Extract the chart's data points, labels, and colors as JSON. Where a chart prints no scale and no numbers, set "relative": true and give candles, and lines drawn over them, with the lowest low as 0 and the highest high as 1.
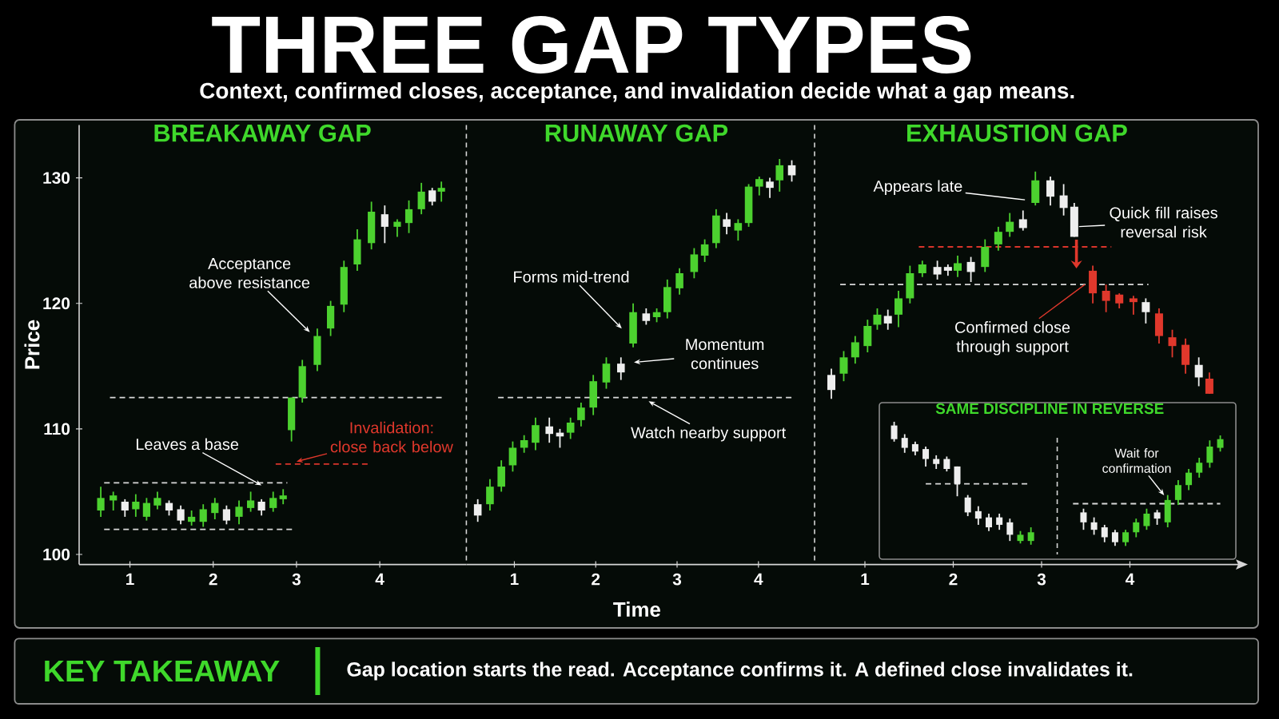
{
  "chart_data": [
    {
      "type": "other",
      "title": "THREE GAP TYPES",
      "subtitle": "Context, confirmed closes, acceptance, and invalidation decide what a gap means."
    },
    {
      "type": "candlestick",
      "title": "BREAKAWAY GAP",
      "ylabel": "Price",
      "x": [
        0.65,
        0.8,
        0.94,
        1.07,
        1.2,
        1.33,
        1.47,
        1.61,
        1.74,
        1.88,
        2.02,
        2.16,
        2.31,
        2.45,
        2.58,
        2.72,
        2.84,
        2.94,
        3.07,
        3.25,
        3.41,
        3.57,
        3.73,
        3.9,
        4.06,
        4.21,
        4.35,
        4.5,
        4.63,
        4.74
      ],
      "ohlc": [
        [
          103.5,
          105.4,
          103.0,
          104.5
        ],
        [
          104.3,
          105.0,
          103.5,
          104.7
        ],
        [
          104.2,
          104.4,
          103.0,
          103.5
        ],
        [
          103.6,
          104.8,
          103.0,
          104.2
        ],
        [
          103.0,
          104.5,
          102.7,
          104.1
        ],
        [
          103.9,
          105.0,
          103.6,
          104.5
        ],
        [
          104.1,
          104.3,
          103.1,
          103.5
        ],
        [
          103.6,
          103.9,
          102.4,
          102.7
        ],
        [
          102.6,
          103.5,
          102.3,
          103.0
        ],
        [
          102.6,
          104.0,
          102.2,
          103.6
        ],
        [
          103.3,
          104.5,
          102.8,
          104.1
        ],
        [
          103.6,
          103.9,
          102.4,
          102.7
        ],
        [
          103.0,
          104.3,
          102.4,
          103.8
        ],
        [
          103.7,
          105.0,
          103.4,
          104.3
        ],
        [
          104.2,
          104.4,
          103.1,
          103.5
        ],
        [
          103.7,
          105.0,
          103.4,
          104.5
        ],
        [
          104.4,
          105.2,
          104.0,
          104.7
        ],
        [
          109.9,
          112.5,
          109.0,
          112.5
        ],
        [
          112.5,
          115.5,
          112.1,
          115.0
        ],
        [
          115.1,
          118.0,
          114.6,
          117.4
        ],
        [
          118.0,
          120.2,
          117.4,
          119.8
        ],
        [
          119.9,
          123.4,
          119.3,
          122.9
        ],
        [
          123.1,
          125.9,
          122.6,
          125.1
        ],
        [
          124.8,
          128.1,
          124.3,
          127.3
        ],
        [
          127.1,
          127.8,
          124.8,
          126.1
        ],
        [
          126.1,
          126.7,
          125.3,
          126.5
        ],
        [
          126.4,
          128.2,
          125.6,
          127.5
        ],
        [
          127.5,
          129.6,
          127.1,
          128.9
        ],
        [
          129.0,
          129.2,
          127.8,
          128.1
        ],
        [
          128.9,
          129.7,
          128.1,
          129.2
        ]
      ],
      "colors": [
        "#4cd12f",
        "#4cd12f",
        "#eeeeee",
        "#4cd12f",
        "#4cd12f",
        "#4cd12f",
        "#eeeeee",
        "#eeeeee",
        "#4cd12f",
        "#4cd12f",
        "#4cd12f",
        "#eeeeee",
        "#4cd12f",
        "#4cd12f",
        "#eeeeee",
        "#4cd12f",
        "#4cd12f",
        "#4cd12f",
        "#4cd12f",
        "#4cd12f",
        "#4cd12f",
        "#4cd12f",
        "#4cd12f",
        "#4cd12f",
        "#eeeeee",
        "#4cd12f",
        "#4cd12f",
        "#4cd12f",
        "#eeeeee",
        "#4cd12f"
      ],
      "series": [
        {
          "type": "line",
          "x": [
            0.76,
            4.76
          ],
          "values": [
            112.5,
            112.5
          ],
          "color": "#d9d9d9",
          "line_style": "dashed"
        },
        {
          "type": "line",
          "x": [
            0.69,
            2.89
          ],
          "values": [
            105.7,
            105.7
          ],
          "color": "#d9d9d9",
          "line_style": "dashed"
        },
        {
          "type": "line",
          "x": [
            0.69,
            2.96
          ],
          "values": [
            102.0,
            102.0
          ],
          "color": "#d9d9d9",
          "line_style": "dashed"
        },
        {
          "type": "line",
          "x": [
            2.75,
            3.86
          ],
          "values": [
            107.2,
            107.2
          ],
          "color": "#d9342b",
          "line_style": "dashed"
        }
      ],
      "annotations": [
        {
          "text": "Acceptance above resistance",
          "x": 3.16,
          "y": 117.7
        },
        {
          "text": "Leaves a base",
          "x": 2.58,
          "y": 105.5
        },
        {
          "text": "Invalidation: close back below",
          "x": 3.0,
          "y": 107.4
        }
      ],
      "xlim": [
        0.39,
        5.04
      ],
      "xticks": [
        1,
        2,
        3,
        4
      ],
      "ylim": [
        99.2,
        134.2
      ],
      "yticks": [
        100,
        110,
        120,
        130
      ]
    },
    {
      "type": "candlestick",
      "title": "RUNAWAY GAP",
      "xlabel": "Time",
      "tick_labels": "x",
      "x": [
        0.55,
        0.7,
        0.84,
        0.98,
        1.12,
        1.26,
        1.43,
        1.56,
        1.69,
        1.82,
        1.97,
        2.13,
        2.31,
        2.46,
        2.62,
        2.75,
        2.88,
        3.03,
        3.21,
        3.34,
        3.48,
        3.61,
        3.75,
        3.88,
        4.01,
        4.14,
        4.26,
        4.41
      ],
      "ohlc": [
        [
          104.0,
          104.4,
          102.6,
          103.1
        ],
        [
          104.0,
          106.0,
          103.5,
          105.4
        ],
        [
          105.4,
          107.5,
          105.0,
          107.0
        ],
        [
          107.1,
          109.0,
          106.6,
          108.5
        ],
        [
          108.5,
          109.5,
          108.1,
          109.1
        ],
        [
          108.9,
          110.9,
          108.3,
          110.3
        ],
        [
          110.2,
          110.9,
          108.9,
          109.6
        ],
        [
          109.7,
          110.0,
          108.5,
          109.4
        ],
        [
          109.7,
          110.9,
          109.2,
          110.5
        ],
        [
          110.7,
          112.1,
          110.2,
          111.7
        ],
        [
          111.7,
          114.3,
          111.1,
          113.8
        ],
        [
          113.7,
          115.7,
          113.2,
          115.2
        ],
        [
          115.2,
          115.7,
          113.9,
          114.5
        ],
        [
          116.8,
          120.0,
          116.5,
          119.3
        ],
        [
          119.2,
          119.6,
          118.3,
          118.6
        ],
        [
          118.9,
          119.6,
          118.5,
          119.3
        ],
        [
          119.3,
          121.9,
          118.8,
          121.3
        ],
        [
          121.2,
          122.8,
          120.7,
          122.4
        ],
        [
          122.5,
          124.4,
          122.0,
          123.9
        ],
        [
          123.8,
          125.1,
          123.3,
          124.7
        ],
        [
          124.8,
          127.5,
          124.4,
          127.0
        ],
        [
          126.7,
          127.2,
          125.5,
          126.1
        ],
        [
          125.8,
          126.7,
          125.0,
          126.4
        ],
        [
          126.4,
          129.5,
          126.1,
          129.3
        ],
        [
          129.3,
          130.1,
          128.6,
          129.9
        ],
        [
          129.7,
          130.0,
          128.4,
          129.2
        ],
        [
          129.8,
          131.5,
          128.9,
          131.0
        ],
        [
          131.0,
          131.4,
          129.7,
          130.2
        ]
      ],
      "colors": [
        "#eeeeee",
        "#4cd12f",
        "#4cd12f",
        "#4cd12f",
        "#4cd12f",
        "#4cd12f",
        "#eeeeee",
        "#eeeeee",
        "#4cd12f",
        "#4cd12f",
        "#4cd12f",
        "#4cd12f",
        "#eeeeee",
        "#4cd12f",
        "#eeeeee",
        "#4cd12f",
        "#4cd12f",
        "#4cd12f",
        "#4cd12f",
        "#4cd12f",
        "#4cd12f",
        "#eeeeee",
        "#4cd12f",
        "#4cd12f",
        "#4cd12f",
        "#eeeeee",
        "#4cd12f",
        "#eeeeee"
      ],
      "series": [
        {
          "type": "line",
          "x": [
            0.8,
            4.41
          ],
          "values": [
            112.5,
            112.5
          ],
          "color": "#d9d9d9",
          "line_style": "dashed"
        }
      ],
      "annotations": [
        {
          "text": "Forms mid-trend",
          "x": 2.32,
          "y": 118.0
        },
        {
          "text": "Momentum continues",
          "x": 2.47,
          "y": 115.3
        },
        {
          "text": "Watch nearby support",
          "x": 2.65,
          "y": 112.2
        }
      ],
      "xlim": [
        0.41,
        4.69
      ],
      "xticks": [
        1,
        2,
        3,
        4
      ],
      "ylim": [
        99.2,
        134.2
      ],
      "yticks": [
        100,
        110,
        120,
        130
      ]
    },
    {
      "type": "candlestick",
      "title": "EXHAUSTION GAP",
      "tick_labels": "x",
      "x": [
        0.62,
        0.76,
        0.89,
        1.03,
        1.14,
        1.26,
        1.38,
        1.51,
        1.65,
        1.82,
        1.94,
        2.05,
        2.2,
        2.36,
        2.51,
        2.64,
        2.79,
        2.93,
        3.1,
        3.25,
        3.37,
        3.58,
        3.73,
        3.88,
        4.04,
        4.18,
        4.33,
        4.48,
        4.63,
        4.78,
        4.9
      ],
      "ohlc": [
        [
          114.3,
          114.8,
          112.4,
          113.1
        ],
        [
          114.4,
          116.2,
          113.8,
          115.7
        ],
        [
          115.7,
          117.4,
          115.2,
          116.9
        ],
        [
          116.6,
          118.7,
          116.1,
          118.2
        ],
        [
          118.3,
          119.6,
          117.9,
          119.1
        ],
        [
          119.0,
          119.5,
          117.9,
          118.4
        ],
        [
          119.1,
          121.0,
          118.1,
          120.4
        ],
        [
          120.4,
          123.0,
          120.0,
          122.4
        ],
        [
          122.4,
          123.4,
          122.1,
          123.1
        ],
        [
          122.9,
          123.4,
          121.9,
          122.3
        ],
        [
          122.9,
          123.1,
          122.2,
          122.6
        ],
        [
          122.6,
          123.8,
          122.1,
          123.2
        ],
        [
          123.3,
          123.7,
          121.7,
          122.5
        ],
        [
          122.9,
          125.1,
          122.5,
          124.5
        ],
        [
          124.7,
          126.1,
          124.2,
          125.7
        ],
        [
          125.7,
          127.2,
          125.3,
          126.5
        ],
        [
          126.7,
          127.4,
          125.8,
          126.0
        ],
        [
          128.0,
          130.5,
          127.8,
          129.8
        ],
        [
          129.8,
          130.1,
          127.8,
          128.5
        ],
        [
          128.6,
          129.5,
          127.0,
          127.6
        ],
        [
          127.7,
          128.0,
          125.3,
          125.3
        ],
        [
          122.6,
          123.0,
          120.0,
          120.8
        ],
        [
          121.0,
          121.5,
          119.3,
          120.2
        ],
        [
          120.7,
          120.8,
          119.6,
          120.0
        ],
        [
          120.4,
          120.6,
          119.1,
          120.1
        ],
        [
          120.1,
          120.4,
          118.4,
          119.3
        ],
        [
          119.2,
          119.6,
          116.8,
          117.4
        ],
        [
          117.3,
          117.9,
          115.7,
          116.6
        ],
        [
          116.7,
          117.2,
          114.4,
          115.1
        ],
        [
          115.1,
          115.7,
          113.4,
          114.1
        ],
        [
          114.0,
          114.5,
          112.8,
          112.8
        ]
      ],
      "colors": [
        "#eeeeee",
        "#4cd12f",
        "#4cd12f",
        "#4cd12f",
        "#4cd12f",
        "#eeeeee",
        "#4cd12f",
        "#4cd12f",
        "#4cd12f",
        "#eeeeee",
        "#eeeeee",
        "#4cd12f",
        "#eeeeee",
        "#4cd12f",
        "#4cd12f",
        "#4cd12f",
        "#eeeeee",
        "#4cd12f",
        "#eeeeee",
        "#eeeeee",
        "#eeeeee",
        "#e0382c",
        "#e0382c",
        "#e0382c",
        "#e0382c",
        "#eeeeee",
        "#e0382c",
        "#e0382c",
        "#e0382c",
        "#eeeeee",
        "#e0382c"
      ],
      "series": [
        {
          "type": "line",
          "x": [
            1.61,
            3.79
          ],
          "values": [
            124.5,
            124.5
          ],
          "color": "#d9342b",
          "line_style": "dashed"
        },
        {
          "type": "line",
          "x": [
            0.72,
            4.21
          ],
          "values": [
            121.5,
            121.5
          ],
          "color": "#d9d9d9",
          "line_style": "dashed"
        }
      ],
      "annotations": [
        "Appears late",
        "Quick fill raises reversal risk",
        {
          "text": "Confirmed close through support",
          "x": 3.49,
          "y": 121.5
        }
      ],
      "xlim": [
        0.43,
        5.29
      ],
      "xticks": [
        1,
        2,
        3,
        4
      ],
      "ylim": [
        99.2,
        134.2
      ],
      "yticks": [
        100,
        110,
        120,
        130
      ]
    },
    {
      "type": "candlestick",
      "title": "SAME DISCIPLINE IN REVERSE",
      "relative": true,
      "categories": [
        null,
        null,
        null,
        null,
        null,
        null,
        null,
        null,
        null,
        null,
        null,
        null,
        null,
        null,
        null,
        null,
        null,
        null,
        null,
        null,
        null,
        null,
        null,
        null,
        null,
        null,
        null,
        null,
        null,
        null,
        null,
        null
      ],
      "ohlc": [
        [
          0.97,
          1.0,
          0.84,
          0.86
        ],
        [
          0.87,
          0.9,
          0.75,
          0.79
        ],
        [
          0.82,
          0.84,
          0.73,
          0.76
        ],
        [
          0.78,
          0.8,
          0.64,
          0.7
        ],
        [
          0.7,
          0.73,
          0.62,
          0.66
        ],
        [
          0.7,
          0.72,
          0.6,
          0.62
        ],
        [
          0.64,
          0.64,
          0.4,
          0.5
        ],
        [
          0.39,
          0.41,
          0.24,
          0.27
        ],
        [
          0.28,
          0.32,
          0.17,
          0.22
        ],
        [
          0.23,
          0.26,
          0.12,
          0.15
        ],
        [
          0.23,
          0.26,
          0.13,
          0.17
        ],
        [
          0.19,
          0.22,
          0.04,
          0.09
        ],
        [
          0.04,
          0.12,
          0.02,
          0.09
        ],
        [
          0.04,
          0.15,
          0.01,
          0.11
        ],
        null,
        null,
        null,
        null,
        [
          0.27,
          0.3,
          0.13,
          0.19
        ],
        [
          0.19,
          0.23,
          0.09,
          0.13
        ],
        [
          0.15,
          0.17,
          0.03,
          0.07
        ],
        [
          0.11,
          0.13,
          0.0,
          0.03
        ],
        [
          0.03,
          0.13,
          0.0,
          0.11
        ],
        [
          0.11,
          0.22,
          0.07,
          0.19
        ],
        [
          0.16,
          0.3,
          0.13,
          0.26
        ],
        [
          0.27,
          0.29,
          0.17,
          0.22
        ],
        [
          0.19,
          0.41,
          0.15,
          0.37
        ],
        [
          0.37,
          0.53,
          0.33,
          0.49
        ],
        [
          0.49,
          0.62,
          0.45,
          0.59
        ],
        [
          0.59,
          0.71,
          0.55,
          0.67
        ],
        [
          0.67,
          0.85,
          0.63,
          0.8
        ],
        [
          0.79,
          0.89,
          0.76,
          0.86
        ]
      ],
      "colors": [
        "#eeeeee",
        "#eeeeee",
        "#eeeeee",
        "#eeeeee",
        "#eeeeee",
        "#eeeeee",
        "#eeeeee",
        "#eeeeee",
        "#eeeeee",
        "#eeeeee",
        "#eeeeee",
        "#eeeeee",
        "#4cd12f",
        "#4cd12f",
        null,
        null,
        null,
        null,
        "#eeeeee",
        "#eeeeee",
        "#eeeeee",
        "#eeeeee",
        "#4cd12f",
        "#4cd12f",
        "#4cd12f",
        "#eeeeee",
        "#4cd12f",
        "#4cd12f",
        "#4cd12f",
        "#4cd12f",
        "#4cd12f",
        "#4cd12f"
      ],
      "series": [
        {
          "type": "line",
          "values": [
            null,
            null,
            null,
            0.5,
            0.5,
            0.5,
            0.5,
            0.5,
            0.5,
            0.5,
            0.5,
            0.5,
            0.5,
            0.5,
            null,
            null,
            null,
            null,
            null,
            null,
            null,
            null,
            null,
            null,
            null,
            null,
            null,
            null,
            null,
            null,
            null,
            null
          ],
          "color": "#d9d9d9",
          "line_style": "dashed"
        },
        {
          "type": "line",
          "values": [
            null,
            null,
            null,
            null,
            null,
            null,
            null,
            null,
            null,
            null,
            null,
            null,
            null,
            null,
            null,
            null,
            null,
            0.34,
            0.34,
            0.34,
            0.34,
            0.34,
            0.34,
            0.34,
            0.34,
            0.34,
            0.34,
            0.34,
            0.34,
            0.34,
            0.34,
            0.34
          ],
          "color": "#d9d9d9",
          "line_style": "dashed"
        }
      ],
      "annotations": [
        "Wait for confirmation"
      ]
    },
    {
      "type": "other",
      "title": "KEY TAKEAWAY",
      "annotations": [
        "Gap location starts the read. Acceptance confirms it. A defined close invalidates it."
      ]
    }
  ]
}
